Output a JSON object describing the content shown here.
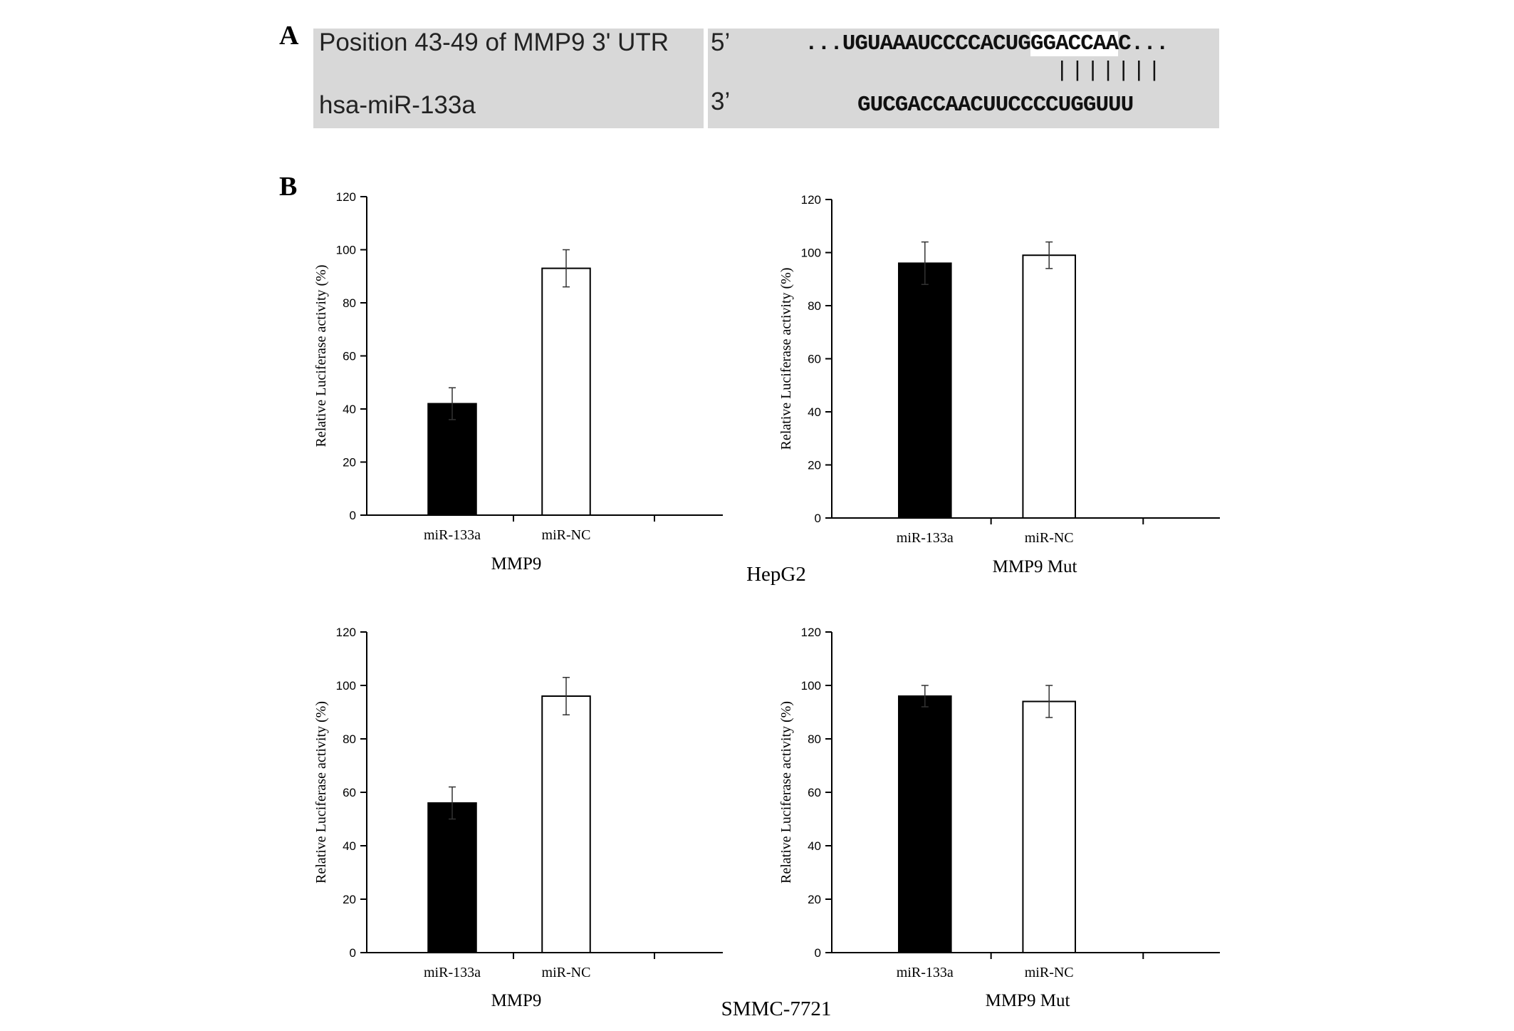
{
  "panels": {
    "a": "A",
    "b": "B"
  },
  "alignment": {
    "row1_label": "Position 43-49 of MMP9 3' UTR",
    "row2_label": "hsa-miR-133a",
    "row1_end": "5’",
    "row2_end": "3’",
    "utr_prefix": "...UGUAAAUCCCCACUG",
    "utr_match": "GGACCAA",
    "utr_suffix": "C...",
    "pairing": "|||||||",
    "mirna_seq": "GUCGACCAACUUCCCCUGGUUU"
  },
  "groups": {
    "top": "HepG2",
    "bottom": "SMMC-7721"
  },
  "colors": {
    "mir133a": "#000000",
    "mirnc": "#ffffff",
    "axis": "#000000"
  },
  "chart_data": [
    {
      "type": "bar",
      "xlabel": "MMP9",
      "ylabel": "Relative Luciferase activity (%)",
      "categories": [
        "miR-133a",
        "miR-NC"
      ],
      "values": [
        42,
        93
      ],
      "errors": [
        6,
        7
      ],
      "ylim": [
        0,
        120
      ],
      "yticks": [
        0,
        20,
        40,
        60,
        80,
        100,
        120
      ],
      "grid": false
    },
    {
      "type": "bar",
      "xlabel": "MMP9 Mut",
      "ylabel": "Relative Luciferase activity (%)",
      "categories": [
        "miR-133a",
        "miR-NC"
      ],
      "values": [
        96,
        99
      ],
      "errors": [
        8,
        5
      ],
      "ylim": [
        0,
        120
      ],
      "yticks": [
        0,
        20,
        40,
        60,
        80,
        100,
        120
      ],
      "grid": false
    },
    {
      "type": "bar",
      "xlabel": "MMP9",
      "ylabel": "Relative Luciferase activity (%)",
      "categories": [
        "miR-133a",
        "miR-NC"
      ],
      "values": [
        56,
        96
      ],
      "errors": [
        6,
        7
      ],
      "ylim": [
        0,
        120
      ],
      "yticks": [
        0,
        20,
        40,
        60,
        80,
        100,
        120
      ],
      "grid": false
    },
    {
      "type": "bar",
      "xlabel": "MMP9 Mut",
      "ylabel": "Relative Luciferase activity (%)",
      "categories": [
        "miR-133a",
        "miR-NC"
      ],
      "values": [
        96,
        94
      ],
      "errors": [
        4,
        6
      ],
      "ylim": [
        0,
        120
      ],
      "yticks": [
        0,
        20,
        40,
        60,
        80,
        100,
        120
      ],
      "grid": false
    }
  ]
}
